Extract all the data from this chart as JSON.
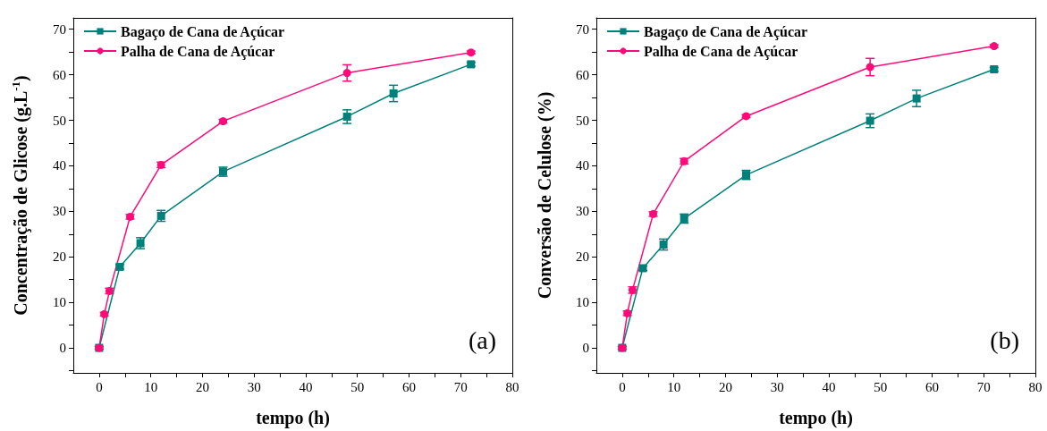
{
  "chart_data": [
    {
      "type": "line",
      "xlabel": "tempo (h)",
      "ylabel": "Concentração de Glicose (g.L$^{-1}$)",
      "annotations": [
        "(a)"
      ],
      "legend": "top left",
      "grid": false,
      "xlim": [
        -5,
        80
      ],
      "xticks": [
        0,
        {
          "value": 5,
          "label": null
        },
        10,
        {
          "value": 15,
          "label": null
        },
        20,
        {
          "value": 25,
          "label": null
        },
        30,
        {
          "value": 35,
          "label": null
        },
        40,
        {
          "value": 45,
          "label": null
        },
        50,
        {
          "value": 55,
          "label": null
        },
        60,
        {
          "value": 65,
          "label": null
        },
        70,
        {
          "value": 75,
          "label": null
        },
        80
      ],
      "ylim": [
        -5.5,
        72.5
      ],
      "yticks": [
        {
          "value": -5,
          "label": null
        },
        0,
        {
          "value": 5,
          "label": null
        },
        10,
        {
          "value": 15,
          "label": null
        },
        20,
        {
          "value": 25,
          "label": null
        },
        30,
        {
          "value": 35,
          "label": null
        },
        40,
        {
          "value": 45,
          "label": null
        },
        50,
        {
          "value": 55,
          "label": null
        },
        60,
        {
          "value": 65,
          "label": null
        },
        70
      ],
      "series": [
        {
          "name": "Bagaço de Cana de Açúcar",
          "color": "#00807a",
          "marker": "square",
          "x": [
            0,
            4,
            8,
            12,
            24,
            48,
            57,
            72
          ],
          "values": [
            0,
            17.8,
            23,
            29,
            38.7,
            50.8,
            55.9,
            62.3
          ],
          "errors": [
            0.3,
            0.5,
            1.2,
            1.2,
            1,
            1.5,
            1.8,
            0.4
          ]
        },
        {
          "name": "Palha de Cana de Açúcar",
          "color": "#ff0a78",
          "marker": "circle",
          "x": [
            0,
            1,
            2,
            6,
            12,
            24,
            48,
            72
          ],
          "values": [
            0,
            7.4,
            12.5,
            28.8,
            40.2,
            49.8,
            60.4,
            64.9
          ],
          "errors": [
            0.3,
            0.4,
            0.6,
            0.5,
            0.6,
            0.4,
            1.8,
            0.3
          ]
        }
      ]
    },
    {
      "type": "line",
      "xlabel": "tempo (h)",
      "ylabel": "Conversão de Celulose (%)",
      "annotations": [
        "(b)"
      ],
      "legend": "top left",
      "grid": false,
      "xlim": [
        -5,
        80
      ],
      "xticks": [
        0,
        {
          "value": 5,
          "label": null
        },
        10,
        {
          "value": 15,
          "label": null
        },
        20,
        {
          "value": 25,
          "label": null
        },
        30,
        {
          "value": 35,
          "label": null
        },
        40,
        {
          "value": 45,
          "label": null
        },
        50,
        {
          "value": 55,
          "label": null
        },
        60,
        {
          "value": 65,
          "label": null
        },
        70,
        {
          "value": 75,
          "label": null
        },
        80
      ],
      "ylim": [
        -5.5,
        72.5
      ],
      "yticks": [
        {
          "value": -5,
          "label": null
        },
        0,
        {
          "value": 5,
          "label": null
        },
        10,
        {
          "value": 15,
          "label": null
        },
        20,
        {
          "value": 25,
          "label": null
        },
        30,
        {
          "value": 35,
          "label": null
        },
        40,
        {
          "value": 45,
          "label": null
        },
        50,
        {
          "value": 55,
          "label": null
        },
        60,
        {
          "value": 65,
          "label": null
        },
        70
      ],
      "series": [
        {
          "name": "Bagaço de Cana de Açúcar",
          "color": "#00807a",
          "marker": "square",
          "x": [
            0,
            4,
            8,
            12,
            24,
            48,
            57,
            72
          ],
          "values": [
            0,
            17.5,
            22.7,
            28.4,
            38,
            49.9,
            54.8,
            61.2
          ],
          "errors": [
            0.3,
            0.5,
            1.2,
            1,
            1,
            1.5,
            1.8,
            0.4
          ]
        },
        {
          "name": "Palha de Cana de Açúcar",
          "color": "#ff0a78",
          "marker": "circle",
          "x": [
            0,
            1,
            2,
            6,
            12,
            24,
            48,
            72
          ],
          "values": [
            0,
            7.6,
            12.7,
            29.4,
            41,
            50.9,
            61.7,
            66.3
          ],
          "errors": [
            0.3,
            0.5,
            0.7,
            0.5,
            0.6,
            0.3,
            1.9,
            0.3
          ]
        }
      ]
    }
  ]
}
